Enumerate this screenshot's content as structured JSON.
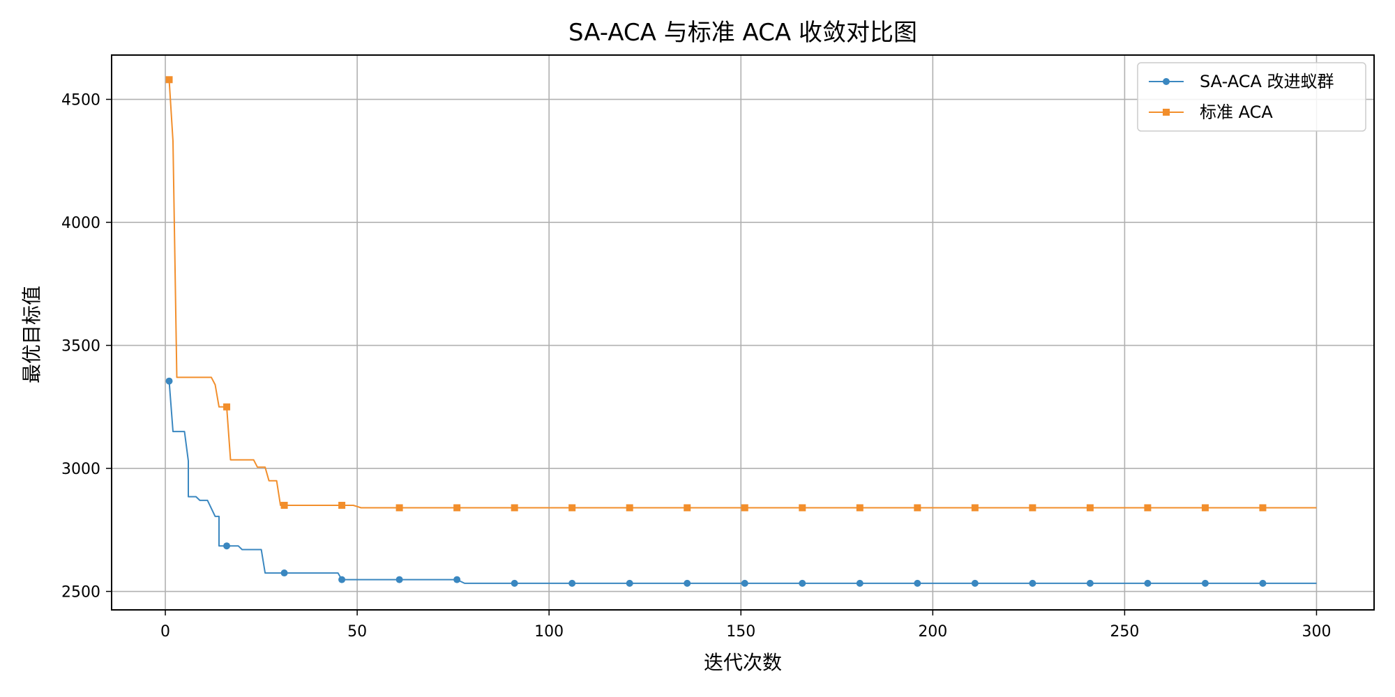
{
  "chart_data": {
    "type": "line",
    "title": "SA-ACA 与标准 ACA 收敛对比图",
    "xlabel": "迭代次数",
    "ylabel": "最优目标值",
    "xlim": [
      -14,
      315
    ],
    "ylim": [
      2425,
      4680
    ],
    "x_ticks": [
      0,
      50,
      100,
      150,
      200,
      250,
      300
    ],
    "y_ticks": [
      2500,
      3000,
      3500,
      4000,
      4500
    ],
    "grid": true,
    "legend_position": "top-right",
    "series": [
      {
        "name": "SA-ACA 改进蚁群",
        "color": "#3a87c0",
        "marker": "circle",
        "markers_x": [
          1,
          16,
          31,
          46,
          61,
          76,
          91,
          106,
          121,
          136,
          151,
          166,
          181,
          196,
          211,
          226,
          241,
          256,
          271,
          286
        ],
        "points": [
          [
            1,
            3355
          ],
          [
            2,
            3150
          ],
          [
            5,
            3150
          ],
          [
            6,
            3030
          ],
          [
            6,
            2885
          ],
          [
            8,
            2885
          ],
          [
            9,
            2870
          ],
          [
            11,
            2870
          ],
          [
            13,
            2805
          ],
          [
            14,
            2805
          ],
          [
            14,
            2685
          ],
          [
            19,
            2685
          ],
          [
            20,
            2670
          ],
          [
            25,
            2670
          ],
          [
            26,
            2575
          ],
          [
            45,
            2575
          ],
          [
            46,
            2548
          ],
          [
            76,
            2548
          ],
          [
            78,
            2533
          ],
          [
            300,
            2533
          ]
        ]
      },
      {
        "name": "标准 ACA",
        "color": "#f28e2b",
        "marker": "square",
        "markers_x": [
          1,
          16,
          31,
          46,
          61,
          76,
          91,
          106,
          121,
          136,
          151,
          166,
          181,
          196,
          211,
          226,
          241,
          256,
          271,
          286
        ],
        "points": [
          [
            1,
            4580
          ],
          [
            2,
            4330
          ],
          [
            3,
            3370
          ],
          [
            12,
            3370
          ],
          [
            13,
            3340
          ],
          [
            14,
            3250
          ],
          [
            16,
            3250
          ],
          [
            17,
            3035
          ],
          [
            23,
            3035
          ],
          [
            24,
            3005
          ],
          [
            26,
            3005
          ],
          [
            27,
            2950
          ],
          [
            29,
            2950
          ],
          [
            30,
            2850
          ],
          [
            49,
            2850
          ],
          [
            51,
            2840
          ],
          [
            300,
            2840
          ]
        ]
      }
    ]
  }
}
